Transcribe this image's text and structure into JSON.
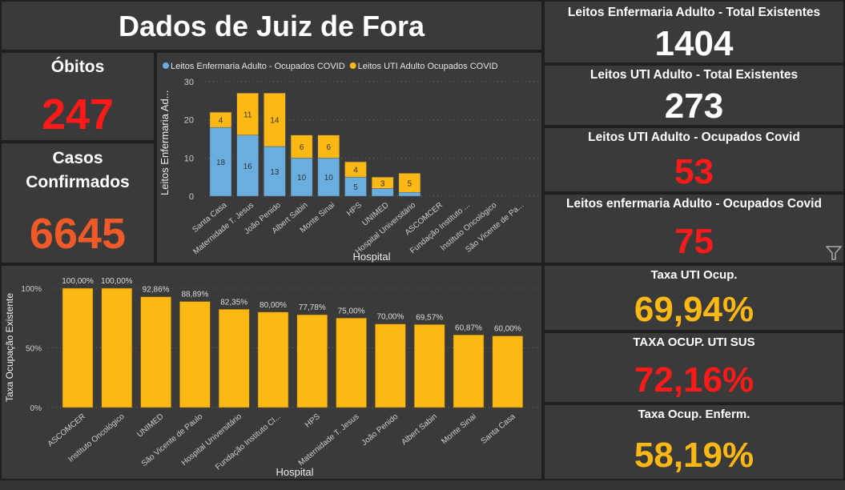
{
  "header": {
    "title": "Dados de Juiz de Fora"
  },
  "colors": {
    "red": "#ff1a1a",
    "orange": "#f05a28",
    "yellow": "#fdb813",
    "blue": "#6aaee0",
    "white": "#ffffff"
  },
  "kpis_left": [
    {
      "label": "Óbitos",
      "value": "247"
    },
    {
      "label": "Casos Confirmados",
      "value": "6645"
    }
  ],
  "kpis_right": [
    {
      "label": "Leitos Enfermaria Adulto - Total Existentes",
      "value": "1404"
    },
    {
      "label": "Leitos UTI Adulto - Total Existentes",
      "value": "273"
    },
    {
      "label": "Leitos UTI Adulto - Ocupados Covid",
      "value": "53"
    },
    {
      "label": "Leitos enfermaria Adulto - Ocupados Covid",
      "value": "75"
    },
    {
      "label": "Taxa UTI Ocup.",
      "value": "69,94%"
    },
    {
      "label": "TAXA OCUP. UTI SUS",
      "value": "72,16%"
    },
    {
      "label": "Taxa Ocup. Enferm.",
      "value": "58,19%"
    }
  ],
  "filter_icon": "funnel-icon",
  "chart_data": [
    {
      "type": "bar",
      "stacked": true,
      "title": "",
      "xlabel": "Hospital",
      "ylabel": "Leitos Enfermaria Ad...",
      "ylim": [
        0,
        30
      ],
      "yticks": [
        "0",
        "10",
        "20",
        "30"
      ],
      "legend_position": "top-left",
      "categories": [
        "Santa Casa",
        "Maternidade T. Jesus",
        "João Penido",
        "Albert Sabin",
        "Monte Sinai",
        "HPS",
        "UNIMED",
        "Hospital Universitário",
        "ASCOMCER",
        "Fundação Instituto ...",
        "Instituto Oncológico",
        "São Vicente de Pa..."
      ],
      "series": [
        {
          "name": "Leitos Enfermaria Adulto - Ocupados COVID",
          "color": "#6aaee0",
          "values": [
            18,
            16,
            13,
            10,
            10,
            5,
            2,
            1,
            0,
            0,
            0,
            0
          ],
          "labels": [
            "18",
            "16",
            "13",
            "10",
            "10",
            "5",
            "",
            "",
            "",
            "",
            "",
            ""
          ]
        },
        {
          "name": "Leitos UTI Adulto Ocupados COVID",
          "color": "#fdb813",
          "values": [
            4,
            11,
            14,
            6,
            6,
            4,
            3,
            5,
            0,
            0,
            0,
            0
          ],
          "labels": [
            "4",
            "11",
            "14",
            "6",
            "6",
            "4",
            "3",
            "5",
            "",
            "",
            "",
            ""
          ]
        }
      ]
    },
    {
      "type": "bar",
      "title": "",
      "xlabel": "Hospital",
      "ylabel": "Taxa Ocupação Existente",
      "ylim": [
        0,
        100
      ],
      "yticks": [
        "0%",
        "50%",
        "100%"
      ],
      "color": "#fdb813",
      "categories": [
        "ASCOMCER",
        "Instituto Oncológico",
        "UNIMED",
        "São Vicente de Paulo",
        "Hospital Universitário",
        "Fundação Instituto Cl...",
        "HPS",
        "Maternidade T. Jesus",
        "João Penido",
        "Albert Sabin",
        "Monte Sinai",
        "Santa Casa"
      ],
      "values": [
        100,
        100,
        92.86,
        88.89,
        82.35,
        80.0,
        77.78,
        75.0,
        70.0,
        69.57,
        60.87,
        60.0
      ],
      "labels": [
        "100,00%",
        "100,00%",
        "92,86%",
        "88,89%",
        "82,35%",
        "80,00%",
        "77,78%",
        "75,00%",
        "70,00%",
        "69,57%",
        "60,87%",
        "60,00%"
      ]
    }
  ]
}
